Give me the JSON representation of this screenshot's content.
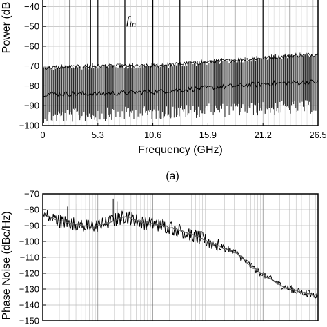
{
  "chart_data": [
    {
      "type": "line",
      "panel_label": "(a)",
      "xlabel": "Frequency (GHz)",
      "ylabel": "Power (dB",
      "xlim": [
        0,
        26.5
      ],
      "ylim": [
        -100,
        -35
      ],
      "xticks": [
        0,
        5.3,
        10.6,
        15.9,
        21.2,
        26.5
      ],
      "xtick_labels": [
        "0",
        "5.3",
        "10.6",
        "15.9",
        "21.2",
        "26.5"
      ],
      "yticks": [
        -100,
        -90,
        -80,
        -70,
        -60,
        -50,
        -40
      ],
      "ytick_labels": [
        "-100",
        "-90",
        "-80",
        "-70",
        "-60",
        "-50",
        "-40"
      ],
      "annotation": {
        "text": "f",
        "subscript": "in",
        "x": 7.9,
        "y": -50
      },
      "spurs": [
        {
          "x": 2.6,
          "y": -35
        },
        {
          "x": 4.6,
          "y": -62
        },
        {
          "x": 5.3,
          "y": -55
        },
        {
          "x": 7.9,
          "y": -56
        },
        {
          "x": 10.6,
          "y": -58
        },
        {
          "x": 13.2,
          "y": -60
        },
        {
          "x": 15.9,
          "y": -52
        },
        {
          "x": 18.5,
          "y": -60
        },
        {
          "x": 21.2,
          "y": -55
        },
        {
          "x": 23.8,
          "y": -60
        },
        {
          "x": 26.0,
          "y": -55
        }
      ],
      "noise_floor": {
        "x": [
          0,
          5.3,
          10.6,
          15.9,
          21.2,
          26.5
        ],
        "upper": [
          -71,
          -70,
          -70,
          -68,
          -66,
          -64
        ],
        "lower": [
          -92,
          -91,
          -90,
          -89,
          -88,
          -87
        ],
        "median": [
          -84,
          -84,
          -83,
          -81,
          -79,
          -78
        ]
      }
    },
    {
      "type": "line",
      "ylabel": "Phase Noise (dBc/Hz)",
      "ylim": [
        -150,
        -70
      ],
      "yticks": [
        -150,
        -140,
        -130,
        -120,
        -110,
        -100,
        -90,
        -80,
        -70
      ],
      "ytick_labels": [
        "-150",
        "-140",
        "-130",
        "-120",
        "-110",
        "-100",
        "-90",
        "-80",
        "-70"
      ],
      "x_scale": "log",
      "x_decades": 5,
      "series": [
        {
          "x_decade": [
            0.0,
            0.3,
            0.6,
            0.9,
            1.2,
            1.5,
            1.8,
            2.0,
            2.2,
            2.5,
            2.8,
            3.0,
            3.2,
            3.5,
            3.8,
            4.1,
            4.4,
            4.7,
            5.0
          ],
          "values": [
            -83,
            -87,
            -89,
            -91,
            -88,
            -84,
            -88,
            -89,
            -90,
            -93,
            -97,
            -100,
            -103,
            -107,
            -116,
            -123,
            -129,
            -132,
            -134
          ]
        }
      ]
    }
  ]
}
